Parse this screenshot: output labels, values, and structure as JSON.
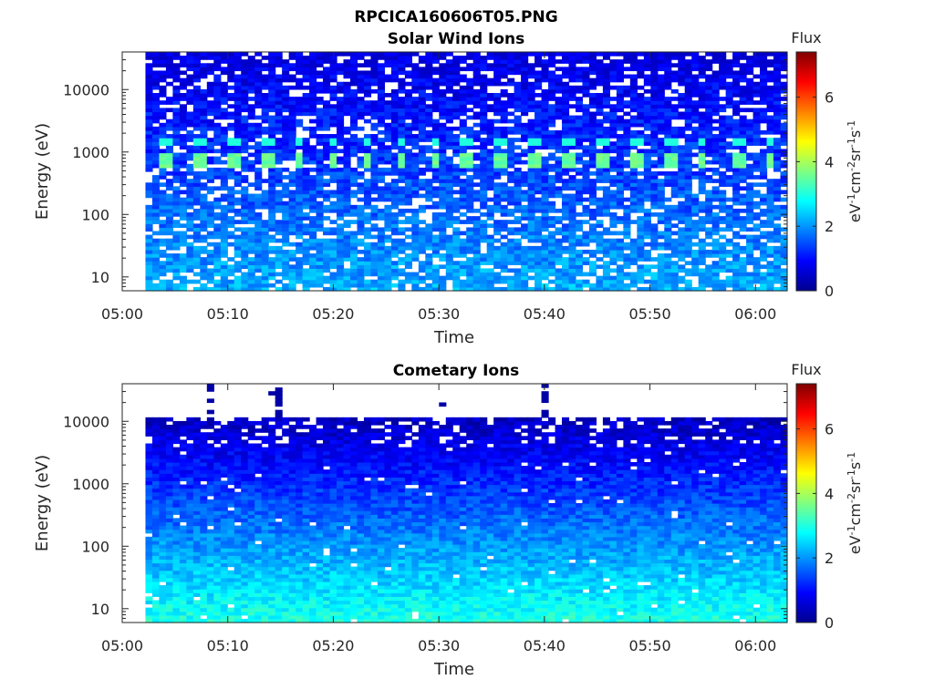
{
  "figure_title": "RPCICA160606T05.PNG",
  "colors": {
    "colormap": [
      "#00008f",
      "#0000ff",
      "#0080ff",
      "#00ffff",
      "#80ff80",
      "#ffff00",
      "#ff8000",
      "#ff0000",
      "#800000"
    ]
  },
  "chart_data": [
    {
      "type": "heatmap",
      "title": "Solar Wind Ions",
      "xlabel": "Time",
      "ylabel": "Energy (eV)",
      "x_ticks": [
        "05:00",
        "05:10",
        "05:20",
        "05:30",
        "05:40",
        "05:50",
        "06:00"
      ],
      "x_tick_minutes": [
        0,
        10,
        20,
        30,
        40,
        50,
        60
      ],
      "xlim_minutes": [
        0,
        63
      ],
      "data_start_minute": 2.2,
      "y_ticks": [
        "10",
        "100",
        "1000",
        "10000"
      ],
      "y_tick_values": [
        10,
        100,
        1000,
        10000
      ],
      "ylim": [
        6,
        40000
      ],
      "y_scale": "log",
      "colorbar": {
        "label": "Flux",
        "units": "eV-1cm-2sr-1s-1",
        "ticks": [
          "0",
          "2",
          "4",
          "6"
        ],
        "tick_values": [
          0,
          2,
          4,
          6
        ],
        "range": [
          0,
          7.4
        ]
      },
      "low_energy_flux": 2.2,
      "background_flux": 0.8,
      "peak_energy": 750,
      "peak_flux": 3.3,
      "peak_times_minutes": [
        4.2,
        7.5,
        10.6,
        13.8,
        16.9,
        20.0,
        23.2,
        26.3,
        29.6,
        32.7,
        35.9,
        39.0,
        42.2,
        45.5,
        48.7,
        51.9,
        55.1,
        58.4,
        61.5
      ]
    },
    {
      "type": "heatmap",
      "title": "Cometary Ions",
      "xlabel": "Time",
      "ylabel": "Energy (eV)",
      "x_ticks": [
        "05:00",
        "05:10",
        "05:20",
        "05:30",
        "05:40",
        "05:50",
        "06:00"
      ],
      "x_tick_minutes": [
        0,
        10,
        20,
        30,
        40,
        50,
        60
      ],
      "xlim_minutes": [
        0,
        63
      ],
      "data_start_minute": 2.2,
      "y_ticks": [
        "10",
        "100",
        "1000",
        "10000"
      ],
      "y_tick_values": [
        10,
        100,
        1000,
        10000
      ],
      "ylim": [
        6,
        40000
      ],
      "y_scale": "log",
      "colorbar": {
        "label": "Flux",
        "units": "eV-1cm-2sr-1s-1",
        "ticks": [
          "0",
          "2",
          "4",
          "6"
        ],
        "tick_values": [
          0,
          2,
          4,
          6
        ],
        "range": [
          0,
          7.4
        ]
      },
      "low_energy_flux": 2.6,
      "background_flux": 0.8,
      "high_energy_sparse_above": 4000,
      "upper_cutoff": 11000,
      "high_energy_spikes_minutes": [
        8.2,
        14.5,
        30.5,
        40.1
      ]
    }
  ]
}
